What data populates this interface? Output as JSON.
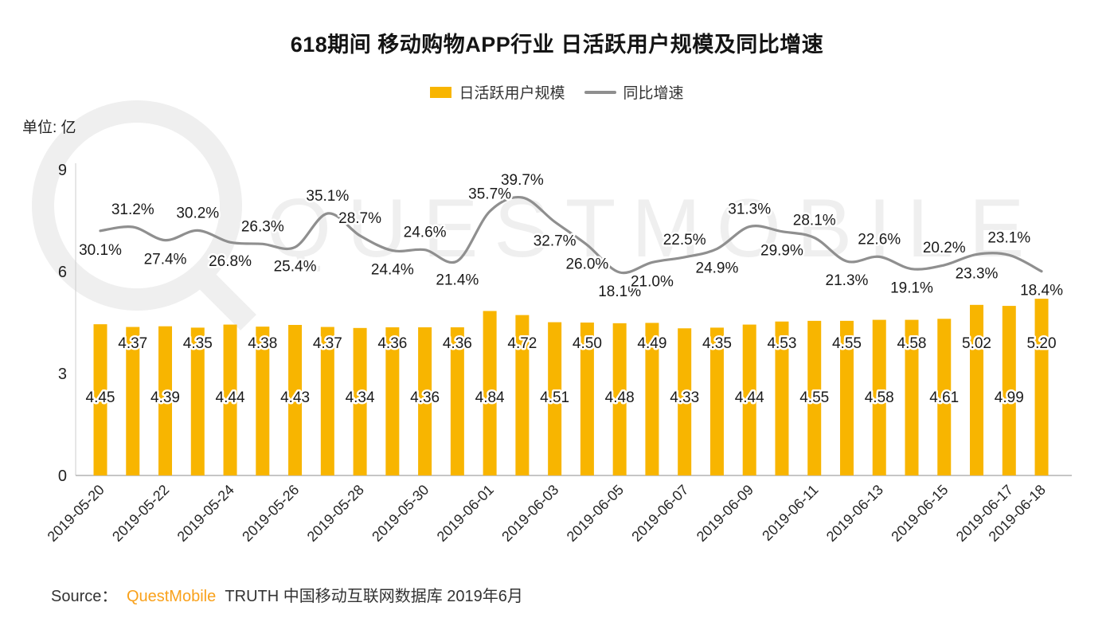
{
  "page": {
    "title": "618期间 移动购物APP行业 日活跃用户规模及同比增速",
    "unit_label": "单位: 亿",
    "watermark_text": "QUESTMOBILE",
    "source": {
      "prefix": "Source：",
      "brand": "QuestMobile",
      "suffix": "TRUTH 中国移动互联网数据库 2019年6月"
    }
  },
  "legend": {
    "bar_label": "日活跃用户规模",
    "line_label": "同比增速"
  },
  "colors": {
    "bar": "#F8B500",
    "line": "#8F8F8F",
    "text": "#1A1A1A",
    "brand_orange": "#F9A11B",
    "watermark": "#EFEFEF"
  },
  "chart_data": {
    "type": "bar+line",
    "title": "618期间 移动购物APP行业 日活跃用户规模及同比增速",
    "xlabel": "",
    "ylabel": "单位: 亿",
    "grid": false,
    "legend_position": "top",
    "y_axis": {
      "ticks": [
        0,
        3,
        6,
        9
      ],
      "max": 9
    },
    "categories": [
      "2019-05-20",
      "2019-05-21",
      "2019-05-22",
      "2019-05-23",
      "2019-05-24",
      "2019-05-25",
      "2019-05-26",
      "2019-05-27",
      "2019-05-28",
      "2019-05-29",
      "2019-05-30",
      "2019-05-31",
      "2019-06-01",
      "2019-06-02",
      "2019-06-03",
      "2019-06-04",
      "2019-06-05",
      "2019-06-06",
      "2019-06-07",
      "2019-06-08",
      "2019-06-09",
      "2019-06-10",
      "2019-06-11",
      "2019-06-12",
      "2019-06-13",
      "2019-06-14",
      "2019-06-15",
      "2019-06-16",
      "2019-06-17",
      "2019-06-18"
    ],
    "tick_indices": [
      0,
      2,
      4,
      6,
      8,
      10,
      12,
      14,
      16,
      18,
      20,
      22,
      24,
      26,
      28,
      29
    ],
    "series": [
      {
        "name": "日活跃用户规模",
        "type": "bar",
        "unit": "亿",
        "values": [
          4.45,
          4.37,
          4.39,
          4.35,
          4.44,
          4.38,
          4.43,
          4.37,
          4.34,
          4.36,
          4.36,
          4.36,
          4.84,
          4.72,
          4.51,
          4.5,
          4.48,
          4.49,
          4.33,
          4.35,
          4.44,
          4.53,
          4.55,
          4.55,
          4.58,
          4.58,
          4.61,
          5.02,
          4.99,
          5.2
        ]
      },
      {
        "name": "同比增速",
        "type": "line",
        "unit": "%",
        "values": [
          30.1,
          31.2,
          27.4,
          30.2,
          26.8,
          26.3,
          25.4,
          35.1,
          28.7,
          24.4,
          24.6,
          21.4,
          35.7,
          39.7,
          32.7,
          26.0,
          18.1,
          21.0,
          22.5,
          24.9,
          31.3,
          29.9,
          28.1,
          21.3,
          22.6,
          19.1,
          20.2,
          23.3,
          23.1,
          18.4
        ],
        "label_positions": [
          "below",
          "above",
          "below",
          "above",
          "below",
          "above",
          "below",
          "above",
          "above",
          "below",
          "above",
          "below",
          "above",
          "above",
          "below",
          "below",
          "below",
          "below",
          "above",
          "below",
          "above",
          "below",
          "above",
          "below",
          "above",
          "below",
          "above",
          "below",
          "above",
          "below"
        ]
      }
    ]
  }
}
